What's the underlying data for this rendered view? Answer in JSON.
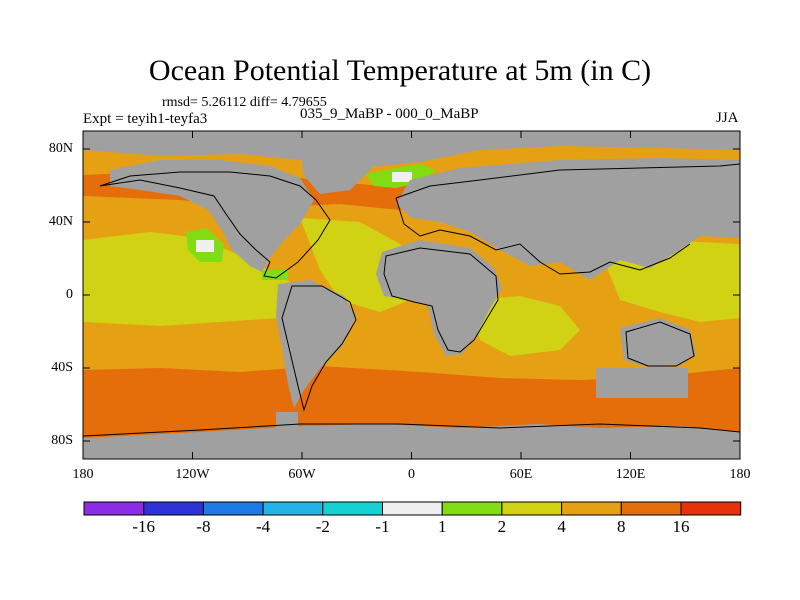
{
  "title": "Ocean Potential Temperature at 5m (in C)",
  "stats_text": "rmsd= 5.26112 diff= 4.79655",
  "expt_text": "Expt = teyih1-teyfa3",
  "period_text": "035_9_MaBP - 000_0_MaBP",
  "season": "JJA",
  "lat_labels": [
    "80N",
    "40N",
    "0",
    "40S",
    "80S"
  ],
  "lon_labels": [
    "180",
    "120W",
    "60W",
    "0",
    "60E",
    "120E",
    "180"
  ],
  "colorbar": {
    "colors": [
      "#8c2ce6",
      "#2e32d8",
      "#1e7ae6",
      "#22b4e6",
      "#14d2d2",
      "#f0f0f0",
      "#82dc14",
      "#d2d214",
      "#e6a014",
      "#e66e0a",
      "#e6320a"
    ],
    "labels": [
      "-16",
      "-8",
      "-4",
      "-2",
      "-1",
      "1",
      "2",
      "4",
      "8",
      "16"
    ]
  },
  "colors": {
    "land": "#a0a0a0",
    "ocean_base": "#e6a014",
    "warm_band": "#e66e0a",
    "tropical": "#d2d214"
  }
}
